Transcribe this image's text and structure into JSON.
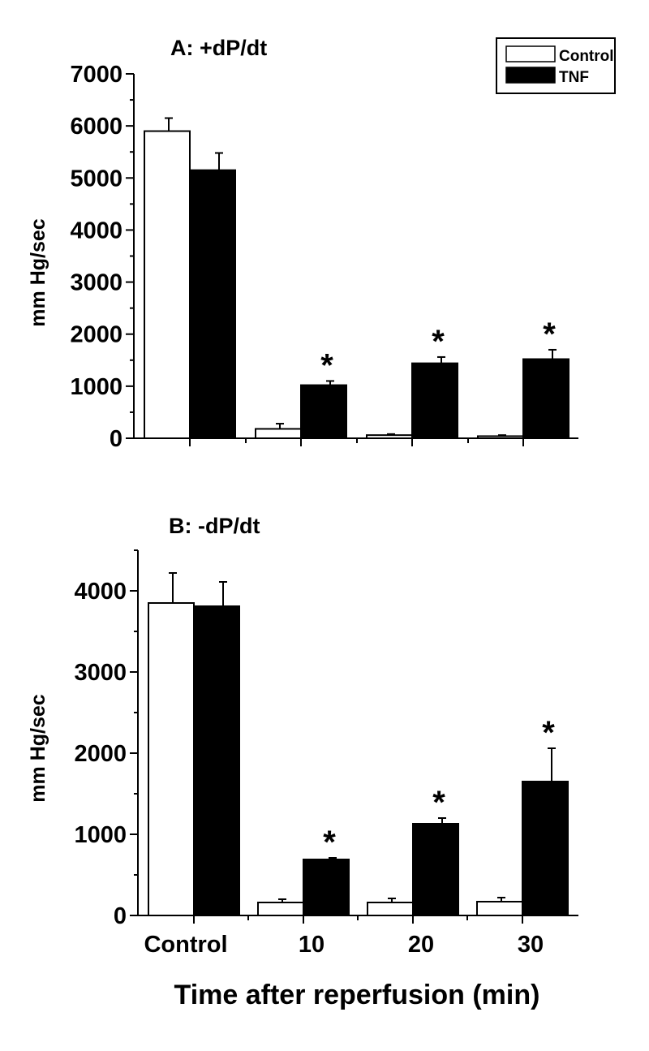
{
  "chart_data": [
    {
      "type": "bar",
      "title": "A: +dP/dt",
      "ylabel": "mm Hg/sec",
      "xlabel": "",
      "ylim": [
        0,
        7000
      ],
      "yticks": [
        "0",
        "1000",
        "2000",
        "3000",
        "4000",
        "5000",
        "6000",
        "7000"
      ],
      "categories": [
        "Control",
        "10",
        "20",
        "30"
      ],
      "tick_labels_shown": false,
      "series": [
        {
          "name": "Control",
          "color": "#ffffff",
          "values": [
            5900,
            180,
            60,
            40
          ],
          "errors": [
            250,
            100,
            20,
            20
          ]
        },
        {
          "name": "TNF",
          "color": "#000000",
          "values": [
            5150,
            1020,
            1440,
            1520
          ],
          "errors": [
            330,
            80,
            120,
            180
          ]
        }
      ],
      "significance": [
        "",
        "*",
        "*",
        "*"
      ],
      "legend": {
        "placement": "top-right",
        "entries": [
          "Control",
          "TNF"
        ]
      }
    },
    {
      "type": "bar",
      "title": "B: -dP/dt",
      "ylabel": "mm Hg/sec",
      "xlabel": "Time after reperfusion (min)",
      "ylim": [
        0,
        4500
      ],
      "yticks": [
        "0",
        "1000",
        "2000",
        "3000",
        "4000"
      ],
      "categories": [
        "Control",
        "10",
        "20",
        "30"
      ],
      "tick_labels_shown": true,
      "series": [
        {
          "name": "Control",
          "color": "#ffffff",
          "values": [
            3850,
            160,
            160,
            170
          ],
          "errors": [
            370,
            40,
            50,
            50
          ]
        },
        {
          "name": "TNF",
          "color": "#000000",
          "values": [
            3810,
            690,
            1130,
            1650
          ],
          "errors": [
            300,
            20,
            70,
            410
          ]
        }
      ],
      "significance": [
        "",
        "*",
        "*",
        "*"
      ]
    }
  ]
}
